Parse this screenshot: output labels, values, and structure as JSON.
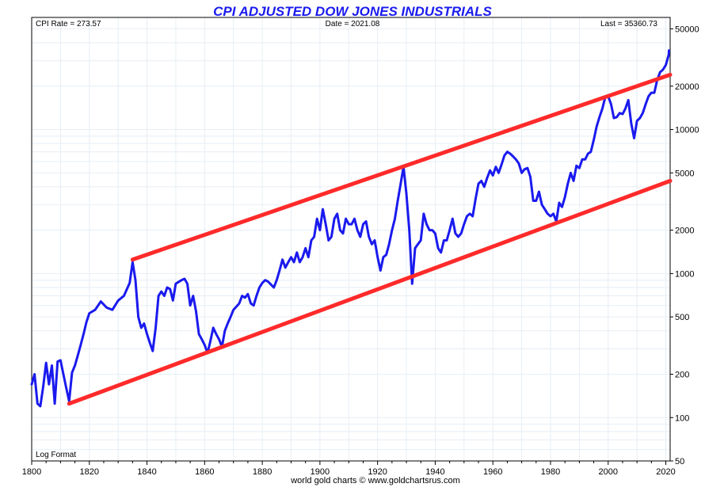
{
  "chart_data": {
    "type": "line",
    "title": "CPI ADJUSTED DOW JONES INDUSTRIALS",
    "info": {
      "cpi_rate": "CPI Rate = 273.57",
      "date": "Date = 2021.08",
      "last": "Last = 35360.73"
    },
    "scale_label": "Log Format",
    "credit": "world gold charts © www.goldchartsrus.com",
    "y_scale": "log",
    "ylim": [
      50,
      60000
    ],
    "xlim": [
      1800,
      2021.5
    ],
    "grid": true,
    "x_ticks": [
      1800,
      1820,
      1840,
      1860,
      1880,
      1900,
      1920,
      1940,
      1960,
      1980,
      2000,
      2020
    ],
    "y_ticks": [
      50,
      100,
      200,
      500,
      1000,
      2000,
      5000,
      10000,
      20000,
      50000
    ],
    "colors": {
      "title": "#1a1aee",
      "series": "#1a1aee",
      "channel": "#ff2a2a",
      "grid": "#e6eef5"
    },
    "series": [
      {
        "values": [
          [
            1800,
            170
          ],
          [
            1801,
            200
          ],
          [
            1802,
            125
          ],
          [
            1803,
            120
          ],
          [
            1804,
            165
          ],
          [
            1805,
            240
          ],
          [
            1806,
            170
          ],
          [
            1807,
            230
          ],
          [
            1808,
            125
          ],
          [
            1809,
            245
          ],
          [
            1810,
            250
          ],
          [
            1811,
            200
          ],
          [
            1812,
            160
          ],
          [
            1813,
            130
          ],
          [
            1814,
            205
          ],
          [
            1815,
            230
          ],
          [
            1816,
            270
          ],
          [
            1817,
            320
          ],
          [
            1818,
            380
          ],
          [
            1819,
            460
          ],
          [
            1820,
            530
          ],
          [
            1822,
            560
          ],
          [
            1824,
            640
          ],
          [
            1826,
            580
          ],
          [
            1828,
            560
          ],
          [
            1830,
            650
          ],
          [
            1832,
            700
          ],
          [
            1834,
            860
          ],
          [
            1835,
            1200
          ],
          [
            1836,
            900
          ],
          [
            1837,
            500
          ],
          [
            1838,
            420
          ],
          [
            1839,
            450
          ],
          [
            1840,
            380
          ],
          [
            1841,
            330
          ],
          [
            1842,
            290
          ],
          [
            1843,
            420
          ],
          [
            1844,
            700
          ],
          [
            1845,
            750
          ],
          [
            1846,
            700
          ],
          [
            1847,
            800
          ],
          [
            1848,
            780
          ],
          [
            1849,
            650
          ],
          [
            1850,
            850
          ],
          [
            1852,
            900
          ],
          [
            1853,
            920
          ],
          [
            1854,
            850
          ],
          [
            1855,
            600
          ],
          [
            1856,
            700
          ],
          [
            1857,
            550
          ],
          [
            1858,
            380
          ],
          [
            1859,
            350
          ],
          [
            1860,
            320
          ],
          [
            1861,
            280
          ],
          [
            1862,
            340
          ],
          [
            1863,
            420
          ],
          [
            1864,
            380
          ],
          [
            1865,
            350
          ],
          [
            1866,
            310
          ],
          [
            1867,
            400
          ],
          [
            1868,
            450
          ],
          [
            1869,
            500
          ],
          [
            1870,
            560
          ],
          [
            1872,
            620
          ],
          [
            1873,
            700
          ],
          [
            1874,
            680
          ],
          [
            1875,
            720
          ],
          [
            1876,
            620
          ],
          [
            1877,
            600
          ],
          [
            1878,
            700
          ],
          [
            1879,
            800
          ],
          [
            1880,
            860
          ],
          [
            1881,
            900
          ],
          [
            1882,
            880
          ],
          [
            1883,
            840
          ],
          [
            1884,
            800
          ],
          [
            1885,
            900
          ],
          [
            1886,
            1050
          ],
          [
            1887,
            1250
          ],
          [
            1888,
            1100
          ],
          [
            1889,
            1200
          ],
          [
            1890,
            1300
          ],
          [
            1891,
            1200
          ],
          [
            1892,
            1400
          ],
          [
            1893,
            1200
          ],
          [
            1894,
            1300
          ],
          [
            1895,
            1500
          ],
          [
            1896,
            1300
          ],
          [
            1897,
            1700
          ],
          [
            1898,
            1800
          ],
          [
            1899,
            2400
          ],
          [
            1900,
            2000
          ],
          [
            1901,
            2800
          ],
          [
            1902,
            2200
          ],
          [
            1903,
            1700
          ],
          [
            1904,
            1800
          ],
          [
            1905,
            2400
          ],
          [
            1906,
            2600
          ],
          [
            1907,
            2000
          ],
          [
            1908,
            1900
          ],
          [
            1909,
            2400
          ],
          [
            1910,
            2200
          ],
          [
            1911,
            2200
          ],
          [
            1912,
            2400
          ],
          [
            1913,
            2000
          ],
          [
            1914,
            1800
          ],
          [
            1915,
            2200
          ],
          [
            1916,
            2300
          ],
          [
            1917,
            1800
          ],
          [
            1918,
            1600
          ],
          [
            1919,
            1700
          ],
          [
            1920,
            1300
          ],
          [
            1921,
            1050
          ],
          [
            1922,
            1300
          ],
          [
            1923,
            1350
          ],
          [
            1924,
            1600
          ],
          [
            1925,
            2000
          ],
          [
            1926,
            2400
          ],
          [
            1927,
            3200
          ],
          [
            1928,
            4200
          ],
          [
            1929,
            5500
          ],
          [
            1930,
            3600
          ],
          [
            1931,
            2000
          ],
          [
            1932,
            850
          ],
          [
            1933,
            1500
          ],
          [
            1934,
            1600
          ],
          [
            1935,
            1700
          ],
          [
            1936,
            2600
          ],
          [
            1937,
            2200
          ],
          [
            1938,
            2000
          ],
          [
            1939,
            2000
          ],
          [
            1940,
            1900
          ],
          [
            1941,
            1500
          ],
          [
            1942,
            1400
          ],
          [
            1943,
            1700
          ],
          [
            1944,
            1700
          ],
          [
            1945,
            2000
          ],
          [
            1946,
            2400
          ],
          [
            1947,
            1900
          ],
          [
            1948,
            1800
          ],
          [
            1949,
            1900
          ],
          [
            1950,
            2200
          ],
          [
            1951,
            2500
          ],
          [
            1952,
            2600
          ],
          [
            1953,
            2500
          ],
          [
            1954,
            3300
          ],
          [
            1955,
            4200
          ],
          [
            1956,
            4400
          ],
          [
            1957,
            4000
          ],
          [
            1958,
            4600
          ],
          [
            1959,
            5200
          ],
          [
            1960,
            4800
          ],
          [
            1961,
            5500
          ],
          [
            1962,
            5000
          ],
          [
            1963,
            5700
          ],
          [
            1964,
            6600
          ],
          [
            1965,
            7000
          ],
          [
            1966,
            6800
          ],
          [
            1967,
            6500
          ],
          [
            1968,
            6200
          ],
          [
            1969,
            5800
          ],
          [
            1970,
            5000
          ],
          [
            1971,
            5300
          ],
          [
            1972,
            5400
          ],
          [
            1973,
            4700
          ],
          [
            1974,
            3200
          ],
          [
            1975,
            3200
          ],
          [
            1976,
            3700
          ],
          [
            1977,
            3000
          ],
          [
            1978,
            2800
          ],
          [
            1979,
            2600
          ],
          [
            1980,
            2500
          ],
          [
            1981,
            2600
          ],
          [
            1982,
            2300
          ],
          [
            1983,
            3100
          ],
          [
            1984,
            2900
          ],
          [
            1985,
            3400
          ],
          [
            1986,
            4200
          ],
          [
            1987,
            5000
          ],
          [
            1988,
            4400
          ],
          [
            1989,
            5600
          ],
          [
            1990,
            5400
          ],
          [
            1991,
            6200
          ],
          [
            1992,
            6200
          ],
          [
            1993,
            6800
          ],
          [
            1994,
            7000
          ],
          [
            1995,
            8500
          ],
          [
            1996,
            10500
          ],
          [
            1997,
            12200
          ],
          [
            1998,
            14000
          ],
          [
            1999,
            16800
          ],
          [
            2000,
            17000
          ],
          [
            2001,
            15000
          ],
          [
            2002,
            12000
          ],
          [
            2003,
            12200
          ],
          [
            2004,
            13000
          ],
          [
            2005,
            12800
          ],
          [
            2006,
            14000
          ],
          [
            2007,
            16000
          ],
          [
            2008,
            11000
          ],
          [
            2009,
            8700
          ],
          [
            2010,
            11500
          ],
          [
            2011,
            12000
          ],
          [
            2012,
            13000
          ],
          [
            2013,
            15000
          ],
          [
            2014,
            17000
          ],
          [
            2015,
            18000
          ],
          [
            2016,
            18000
          ],
          [
            2017,
            22000
          ],
          [
            2018,
            25000
          ],
          [
            2019,
            26000
          ],
          [
            2020,
            28000
          ],
          [
            2021,
            33000
          ],
          [
            2021.08,
            35360
          ]
        ]
      }
    ],
    "channel_lines": [
      {
        "from": [
          1835,
          1250
        ],
        "to": [
          2021.5,
          24000
        ]
      },
      {
        "from": [
          1813,
          125
        ],
        "to": [
          2021.5,
          4400
        ]
      }
    ]
  }
}
